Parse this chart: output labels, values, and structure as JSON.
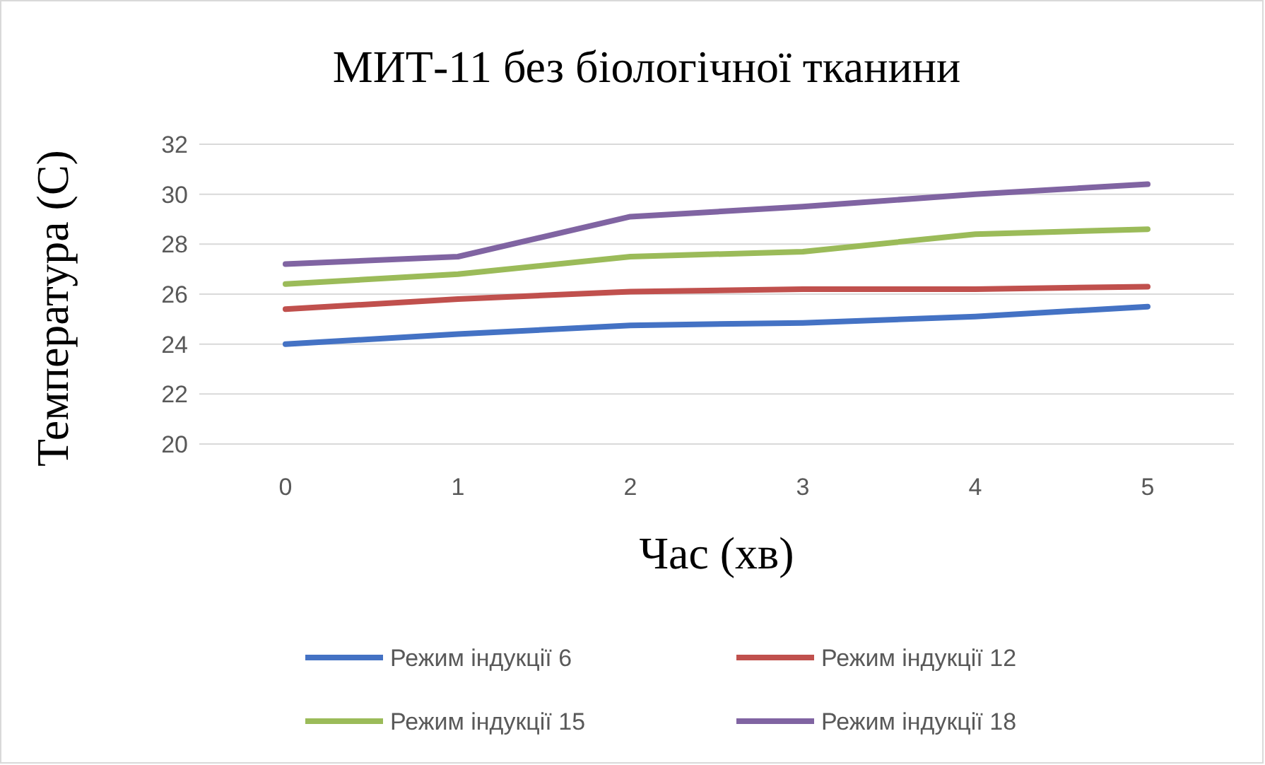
{
  "chart_data": {
    "type": "line",
    "title": "МИТ-11 без біологічної тканини",
    "xlabel": "Час (хв)",
    "ylabel": "Температура (С)",
    "categories": [
      "0",
      "1",
      "2",
      "3",
      "4",
      "5"
    ],
    "series": [
      {
        "name": "Режим індукції 6",
        "color": "#4472c4",
        "values": [
          24.0,
          24.4,
          24.75,
          24.85,
          25.1,
          25.5
        ]
      },
      {
        "name": "Режим індукції 12",
        "color": "#c0504d",
        "values": [
          25.4,
          25.8,
          26.1,
          26.2,
          26.2,
          26.3
        ]
      },
      {
        "name": "Режим індукції 15",
        "color": "#9bbb59",
        "values": [
          26.4,
          26.8,
          27.5,
          27.7,
          28.4,
          28.6
        ]
      },
      {
        "name": "Режим індукції 18",
        "color": "#8064a2",
        "values": [
          27.2,
          27.5,
          29.1,
          29.5,
          30.0,
          30.4
        ]
      }
    ],
    "ylim": [
      20,
      32
    ],
    "yticks": [
      20,
      22,
      24,
      26,
      28,
      30,
      32
    ],
    "grid": "y",
    "legend": "bottom",
    "line_style": "solid",
    "marker": "none"
  }
}
